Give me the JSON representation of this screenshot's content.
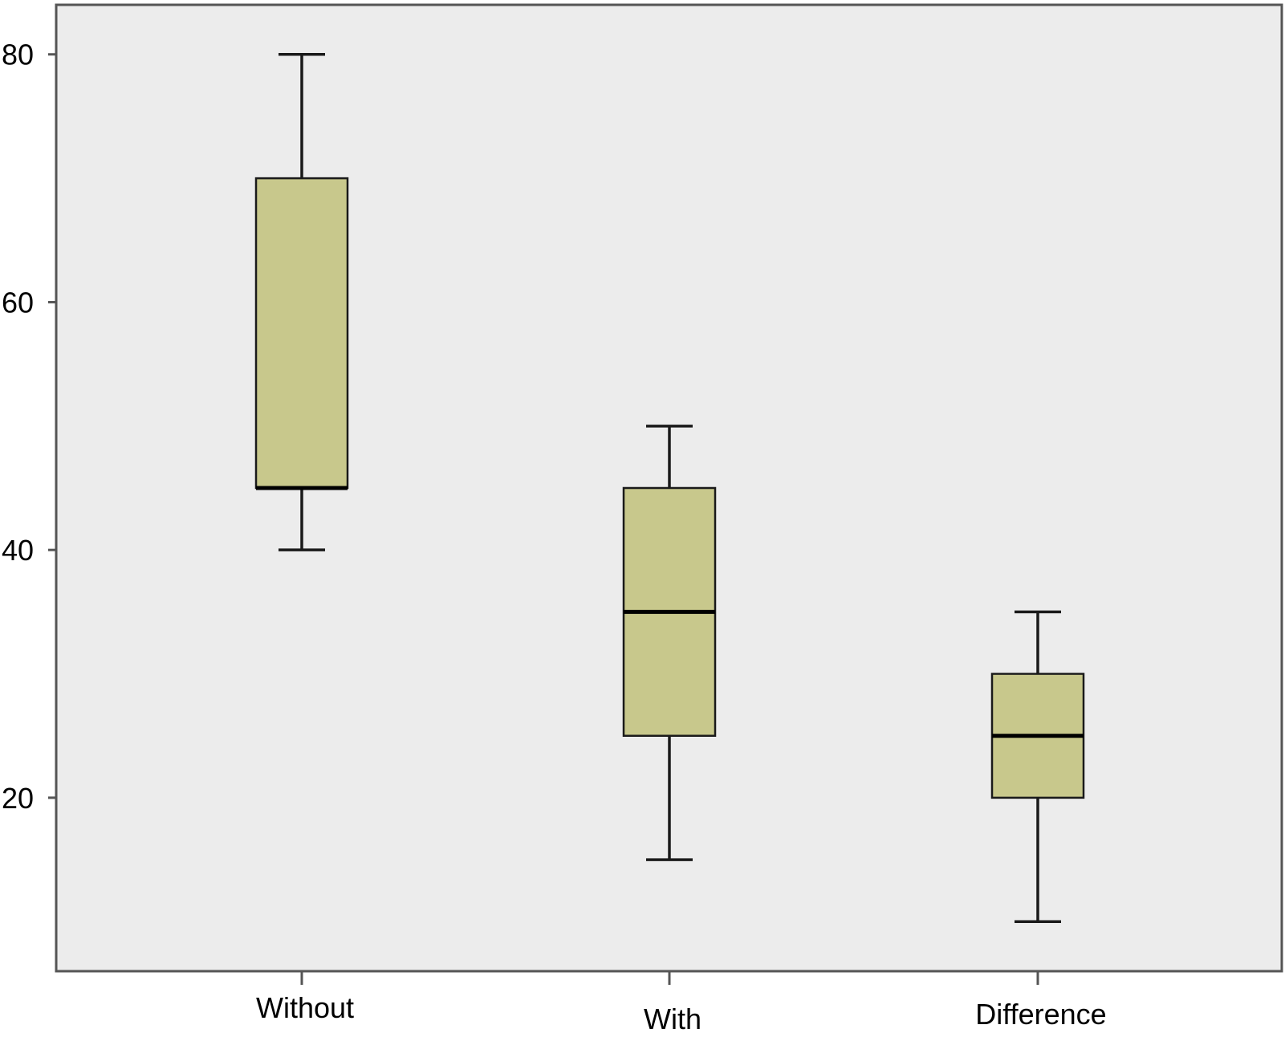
{
  "chart_data": {
    "type": "boxplot",
    "title": "",
    "xlabel": "",
    "ylabel": "",
    "categories": [
      "Without",
      "With",
      "Difference"
    ],
    "boxes": [
      {
        "category": "Without",
        "min": 40,
        "q1": 45,
        "median": 45,
        "q3": 70,
        "max": 80
      },
      {
        "category": "With",
        "min": 15,
        "q1": 25,
        "median": 35,
        "q3": 45,
        "max": 50
      },
      {
        "category": "Difference",
        "min": 10,
        "q1": 20,
        "median": 25,
        "q3": 30,
        "max": 35
      }
    ],
    "y_ticks": [
      20,
      40,
      60,
      80
    ],
    "ylim": [
      6,
      84
    ],
    "grid": false,
    "legend": "none",
    "colors": {
      "plot_background": "#ececec",
      "box_fill": "#c8c88c",
      "stroke": "#1a1a1a",
      "frame": "#555555"
    }
  }
}
